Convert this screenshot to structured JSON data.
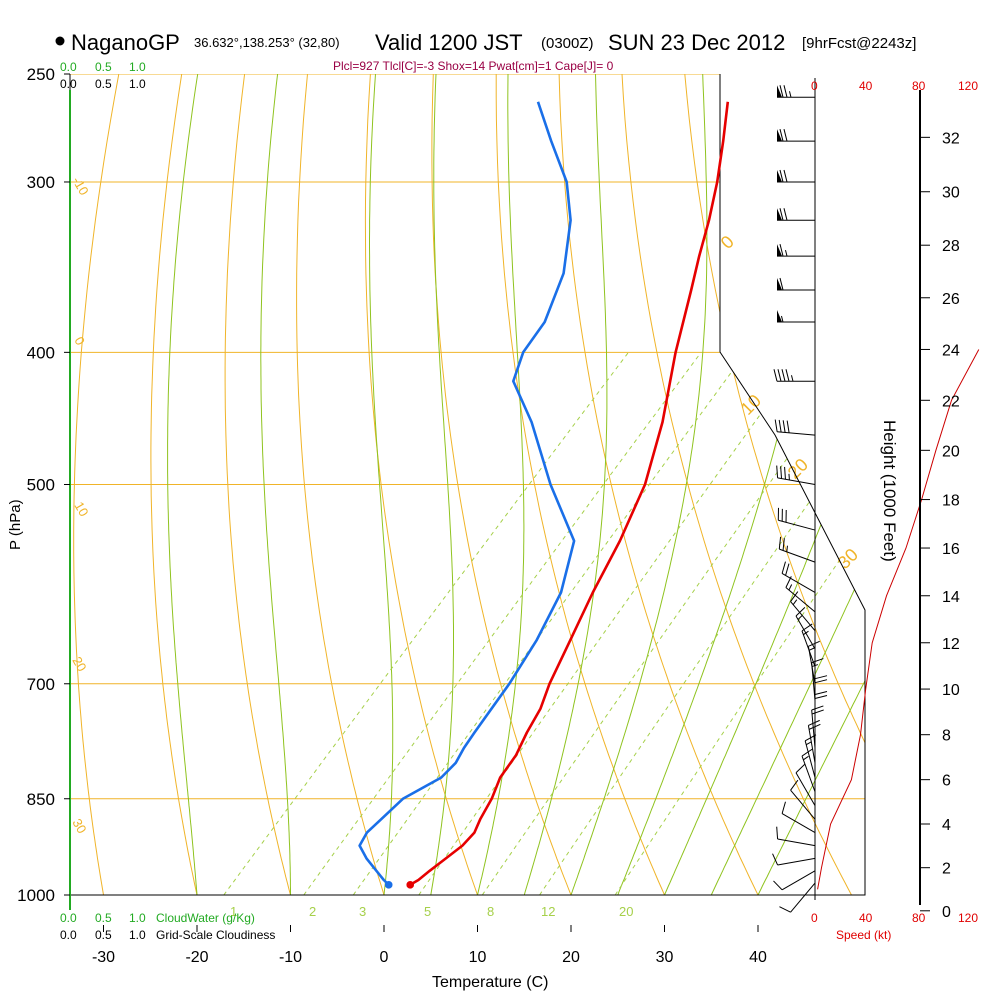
{
  "header": {
    "station": "NaganoGP",
    "coords": "36.632°,138.253° (32,80)",
    "valid": "Valid 1200 JST",
    "utc": "(0300Z)",
    "date": "SUN 23 Dec 2012",
    "fcst": "[9hrFcst@2243z]",
    "indices": "Plcl=927 Tlcl[C]=-3 Shox=14 Pwat[cm]=1 Cape[J]= 0"
  },
  "colors": {
    "isobar": "#f0b429",
    "dry_adiabat": "#f0b429",
    "moist_adiabat": "#8fc31f",
    "mixing_ratio": "#a6d04a",
    "temperature": "#e60000",
    "dewpoint": "#1a6fe8",
    "cloud": "#22aa22",
    "speed": "#cc0000"
  },
  "top_scales": {
    "cloudwater_labels": [
      "0.0",
      "0.5",
      "1.0"
    ],
    "cloudiness_labels": [
      "0.0",
      "0.5",
      "1.0"
    ]
  },
  "bottom_scales": {
    "cloudwater_labels": [
      "0.0",
      "0.5",
      "1.0"
    ],
    "cloudwater_title": "CloudWater (g/Kg)",
    "cloudiness_labels": [
      "0.0",
      "0.5",
      "1.0"
    ],
    "cloudiness_title": "Grid-Scale Cloudiness"
  },
  "speed_axis": {
    "ticks": [
      "0",
      "40",
      "80",
      "120"
    ],
    "title": "Speed (kt)"
  },
  "height_axis": {
    "title": "Height (1000 Feet)",
    "ticks": [
      "0",
      "2",
      "4",
      "6",
      "8",
      "10",
      "12",
      "14",
      "16",
      "18",
      "20",
      "22",
      "24",
      "26",
      "28",
      "30",
      "32"
    ]
  },
  "chart_data": {
    "type": "line",
    "title": "NaganoGP Valid 1200 JST (0300Z) SUN 23 Dec 2012",
    "xlabel": "Temperature (C)",
    "ylabel": "P (hPa)",
    "x_ticks": [
      -30,
      -20,
      -10,
      0,
      10,
      20,
      30,
      40
    ],
    "x_tick_labels": [
      "-30",
      "-20",
      "-10",
      "0",
      "10",
      "20",
      "30",
      "40"
    ],
    "xlim_at_1000hPa": [
      -34,
      52
    ],
    "y_ticks": [
      250,
      300,
      400,
      500,
      700,
      850,
      1000
    ],
    "y_tick_labels": [
      "250",
      "300",
      "400",
      "500",
      "700",
      "850",
      "1000"
    ],
    "ylim": [
      250,
      1000
    ],
    "dry_adiabat_labels": [
      "-10",
      "0",
      "10",
      "20",
      "30",
      "0",
      "10",
      "20",
      "30"
    ],
    "mixing_ratio_values": [
      1,
      2,
      3,
      5,
      8,
      12,
      20
    ],
    "mixing_ratio_labels": [
      "1",
      "2",
      "3",
      "5",
      "8",
      "12",
      "20"
    ],
    "series": [
      {
        "name": "Temperature",
        "pressure": [
          983,
          975,
          960,
          940,
          920,
          900,
          880,
          850,
          820,
          790,
          760,
          730,
          700,
          650,
          600,
          550,
          500,
          450,
          400,
          360,
          340,
          320,
          300,
          280,
          262
        ],
        "values": [
          1.8,
          2.2,
          2.5,
          3.0,
          3.5,
          3.5,
          2.8,
          2.0,
          0.8,
          0.3,
          -0.8,
          -1.7,
          -3.2,
          -5.3,
          -7.6,
          -9.8,
          -12.7,
          -17.0,
          -22.5,
          -27.0,
          -29.5,
          -32.0,
          -34.9,
          -38.3,
          -41.7
        ]
      },
      {
        "name": "Dewpoint",
        "pressure": [
          983,
          975,
          960,
          940,
          920,
          900,
          880,
          850,
          820,
          800,
          780,
          760,
          700,
          650,
          600,
          550,
          500,
          450,
          420,
          400,
          380,
          350,
          320,
          300,
          280,
          262
        ],
        "values": [
          -0.5,
          -1.5,
          -3.2,
          -5.5,
          -7.5,
          -8.0,
          -7.8,
          -7.5,
          -5.5,
          -5.4,
          -6.0,
          -6.4,
          -7.5,
          -8.9,
          -11.0,
          -14.7,
          -22.8,
          -31.0,
          -37.0,
          -38.8,
          -39.5,
          -42.3,
          -46.8,
          -51.0,
          -56.7,
          -62.0
        ]
      }
    ],
    "wind_barbs": {
      "pressure": [
        260,
        280,
        300,
        320,
        340,
        360,
        380,
        420,
        460,
        500,
        540,
        570,
        600,
        620,
        640,
        660,
        680,
        700,
        720,
        740,
        760,
        780,
        800,
        820,
        840,
        860,
        880,
        900,
        920,
        940,
        960,
        980
      ],
      "speed_kt": [
        75,
        70,
        70,
        70,
        65,
        60,
        55,
        45,
        40,
        35,
        30,
        25,
        20,
        15,
        15,
        15,
        15,
        15,
        15,
        20,
        20,
        20,
        20,
        15,
        15,
        10,
        10,
        10,
        10,
        10,
        10,
        10
      ],
      "direction_deg": [
        270,
        270,
        270,
        270,
        270,
        270,
        270,
        270,
        275,
        280,
        285,
        290,
        300,
        310,
        320,
        330,
        340,
        350,
        355,
        0,
        0,
        355,
        350,
        345,
        340,
        330,
        320,
        300,
        280,
        260,
        240,
        220
      ]
    },
    "speed_profile": {
      "height_kft": [
        1,
        2,
        4,
        6,
        8,
        10,
        12,
        14,
        16,
        18,
        20,
        22,
        24
      ],
      "speed_kt": [
        2,
        5,
        12,
        28,
        35,
        39,
        44,
        55,
        70,
        82,
        93,
        105,
        126
      ]
    }
  }
}
